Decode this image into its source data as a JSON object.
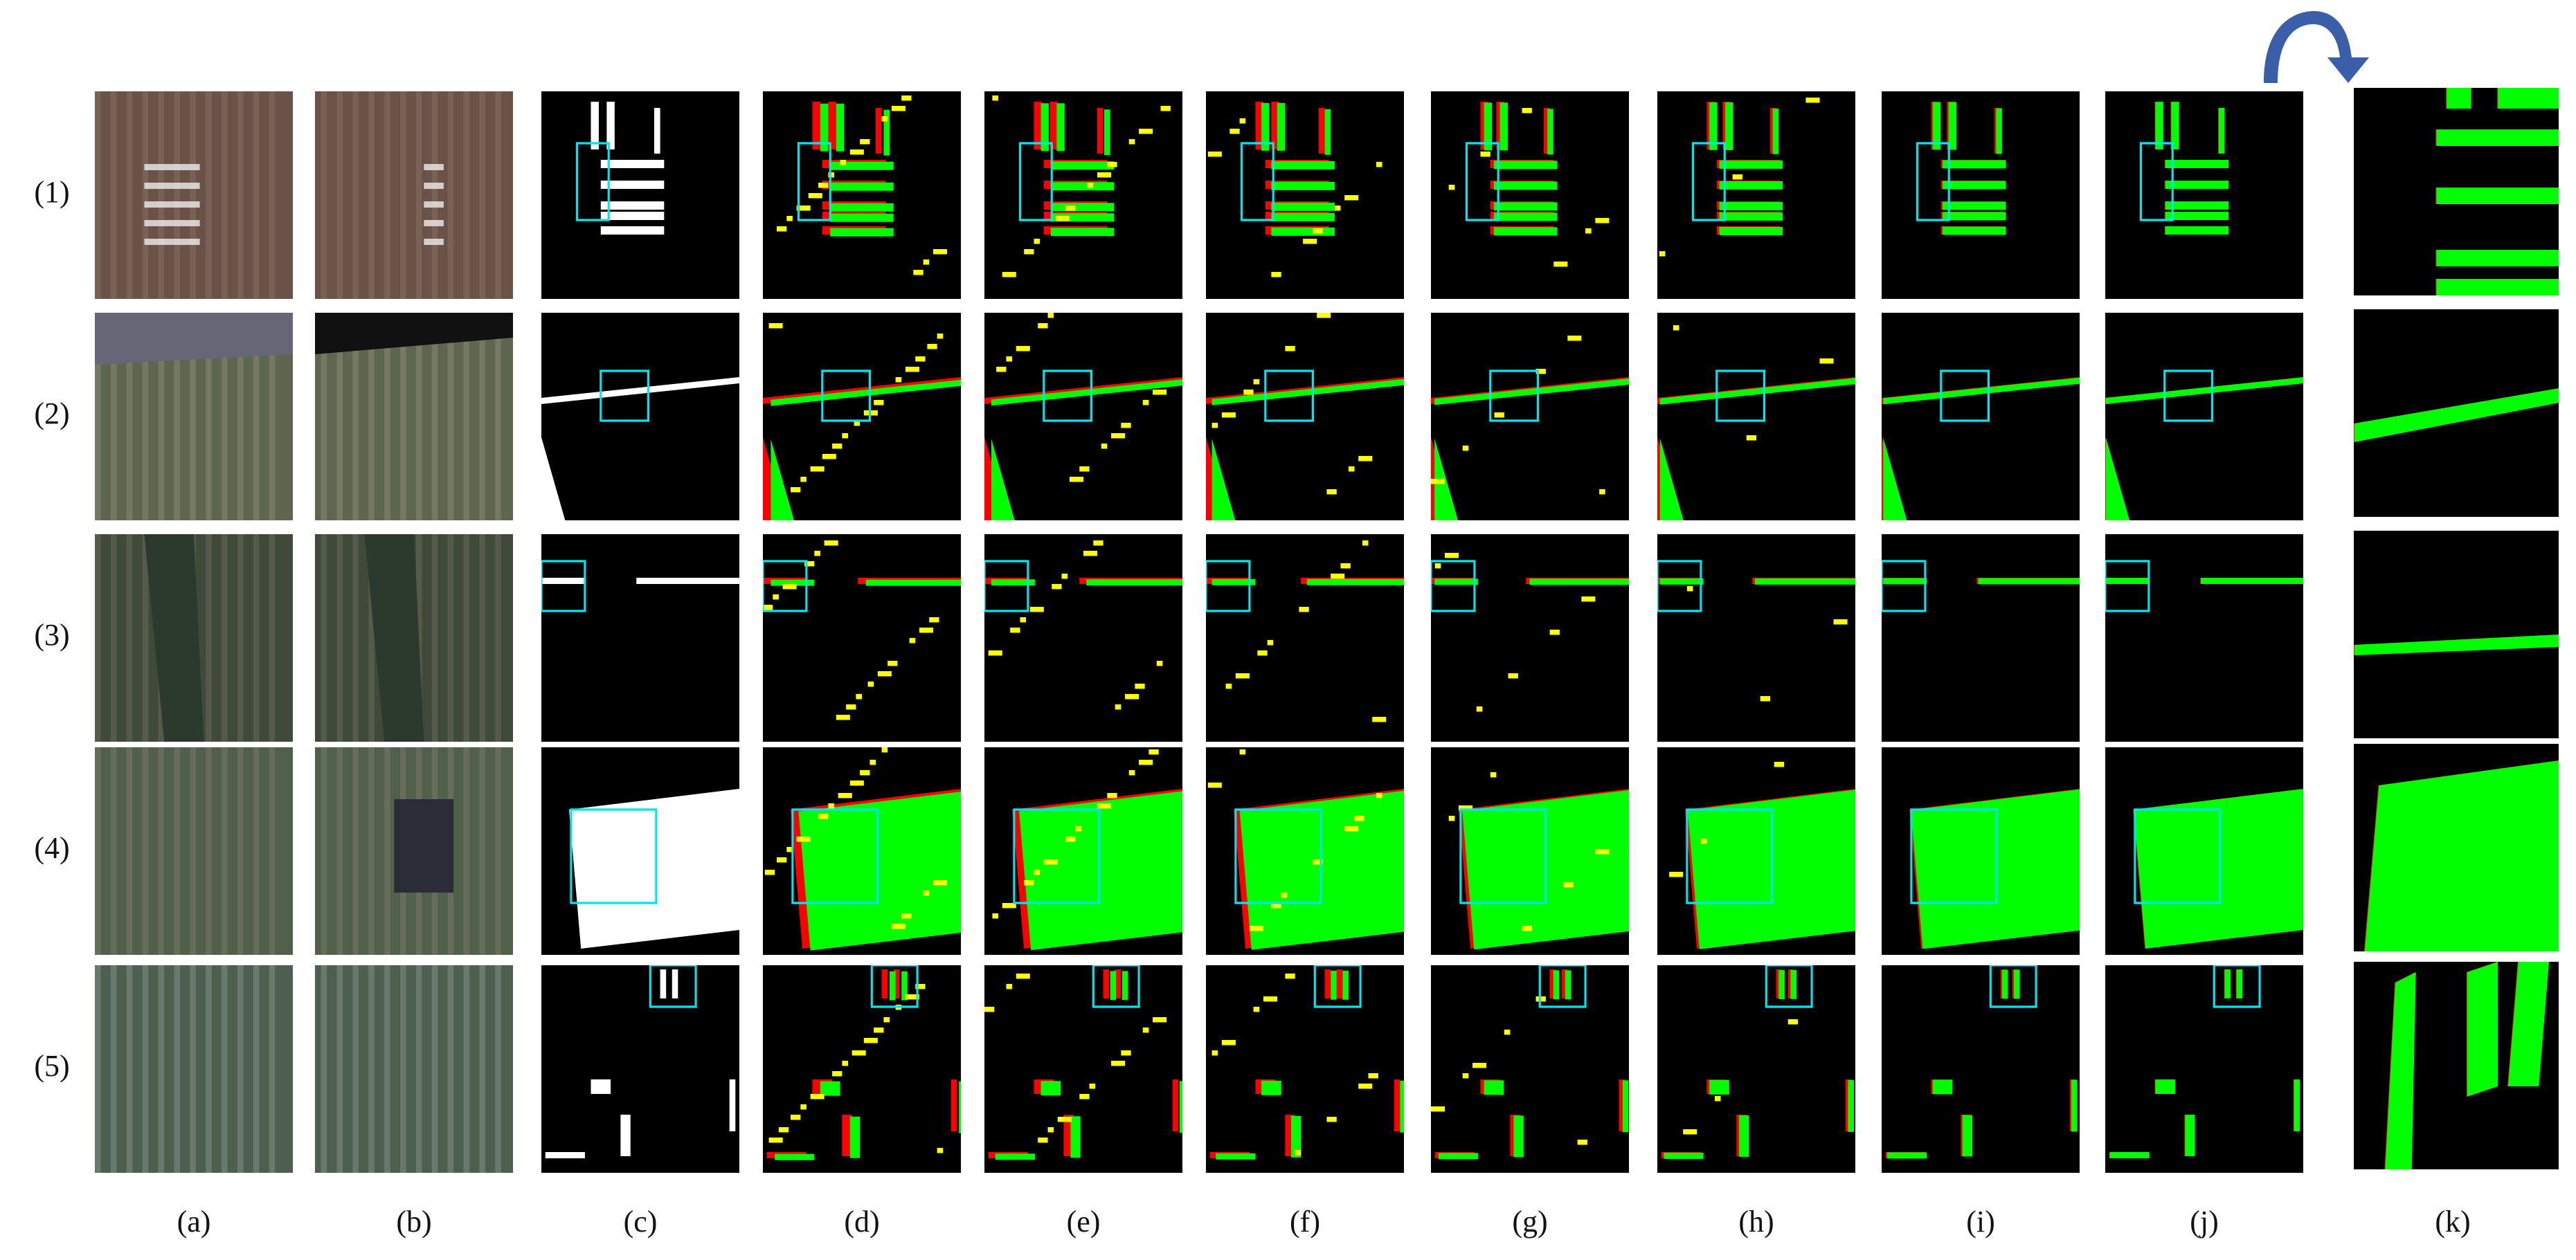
{
  "row_labels": [
    "(1)",
    "(2)",
    "(3)",
    "(4)",
    "(5)"
  ],
  "column_labels": [
    "(a)",
    "(b)",
    "(c)",
    "(d)",
    "(e)",
    "(f)",
    "(g)",
    "(h)",
    "(i)",
    "(j)",
    "(k)"
  ],
  "colors": {
    "true_positive": "#00ff00",
    "false_negative": "#ff0000",
    "false_positive": "#ffff00",
    "ground_truth": "#ffffff",
    "background": "#000000",
    "highlight_box": "#00e5ee",
    "arrow": "#3a5ea8"
  },
  "arrow_icon": "curved-arrow-right-down"
}
